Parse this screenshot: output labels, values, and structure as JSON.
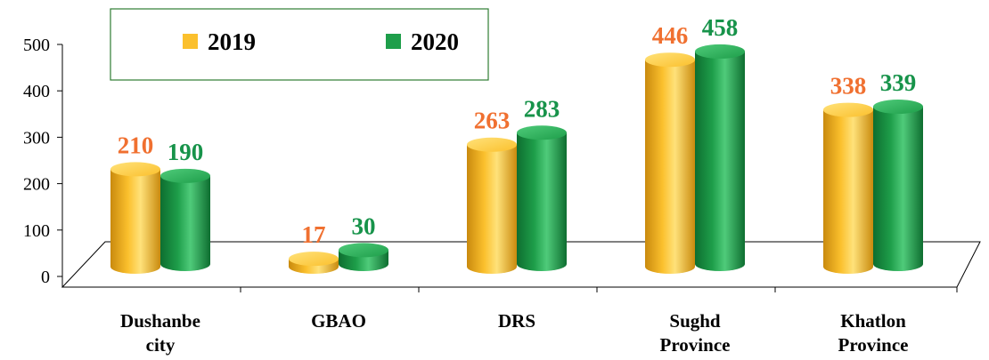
{
  "chart_data": {
    "type": "bar",
    "categories": [
      [
        "Dushanbe",
        "city"
      ],
      [
        "GBAO"
      ],
      [
        "DRS"
      ],
      [
        "Sughd",
        "Province"
      ],
      [
        "Khatlon",
        "Province"
      ]
    ],
    "series": [
      {
        "name": "2019",
        "values": [
          210,
          17,
          263,
          446,
          338
        ],
        "color": "#FBC02D",
        "label_color": "#F07030"
      },
      {
        "name": "2020",
        "values": [
          190,
          30,
          283,
          458,
          339
        ],
        "color": "#1E9E4A",
        "label_color": "#17934A"
      }
    ],
    "ylim": [
      0,
      500
    ],
    "yticks": [
      0,
      100,
      200,
      300,
      400,
      500
    ],
    "legend_position": "top",
    "grid": false,
    "style": "3d-cylinder"
  }
}
